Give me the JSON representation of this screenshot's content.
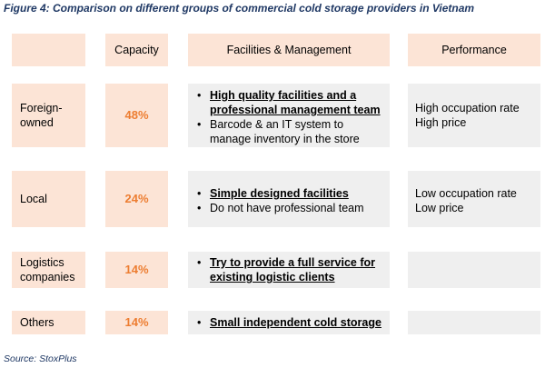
{
  "title": "Figure 4: Comparison on different groups of commercial cold storage providers in Vietnam",
  "source": "Source: StoxPlus",
  "headers": {
    "capacity": "Capacity",
    "facilities": "Facilities & Management",
    "performance": "Performance"
  },
  "rows": [
    {
      "label_line1": "Foreign-",
      "label_line2": "owned",
      "capacity": "48%",
      "facilities": [
        {
          "text": "High quality facilities and a professional management team",
          "highlight": true
        },
        {
          "text": "Barcode & an IT system to manage inventory in the store",
          "highlight": false
        }
      ],
      "performance_line1": "High occupation rate",
      "performance_line2": "High price"
    },
    {
      "label_line1": "Local",
      "capacity": "24%",
      "facilities": [
        {
          "text": "Simple designed facilities",
          "highlight": true
        },
        {
          "text": "Do not have professional team",
          "highlight": false
        }
      ],
      "performance_line1": "Low occupation rate",
      "performance_line2": "Low price"
    },
    {
      "label_line1": "Logistics",
      "label_line2": "companies",
      "capacity": "14%",
      "facilities": [
        {
          "text": "Try to provide a full service for existing logistic clients",
          "highlight": true
        }
      ]
    },
    {
      "label_line1": "Others",
      "capacity": "14%",
      "facilities": [
        {
          "text": "Small independent cold storage",
          "highlight": true
        }
      ]
    }
  ]
}
